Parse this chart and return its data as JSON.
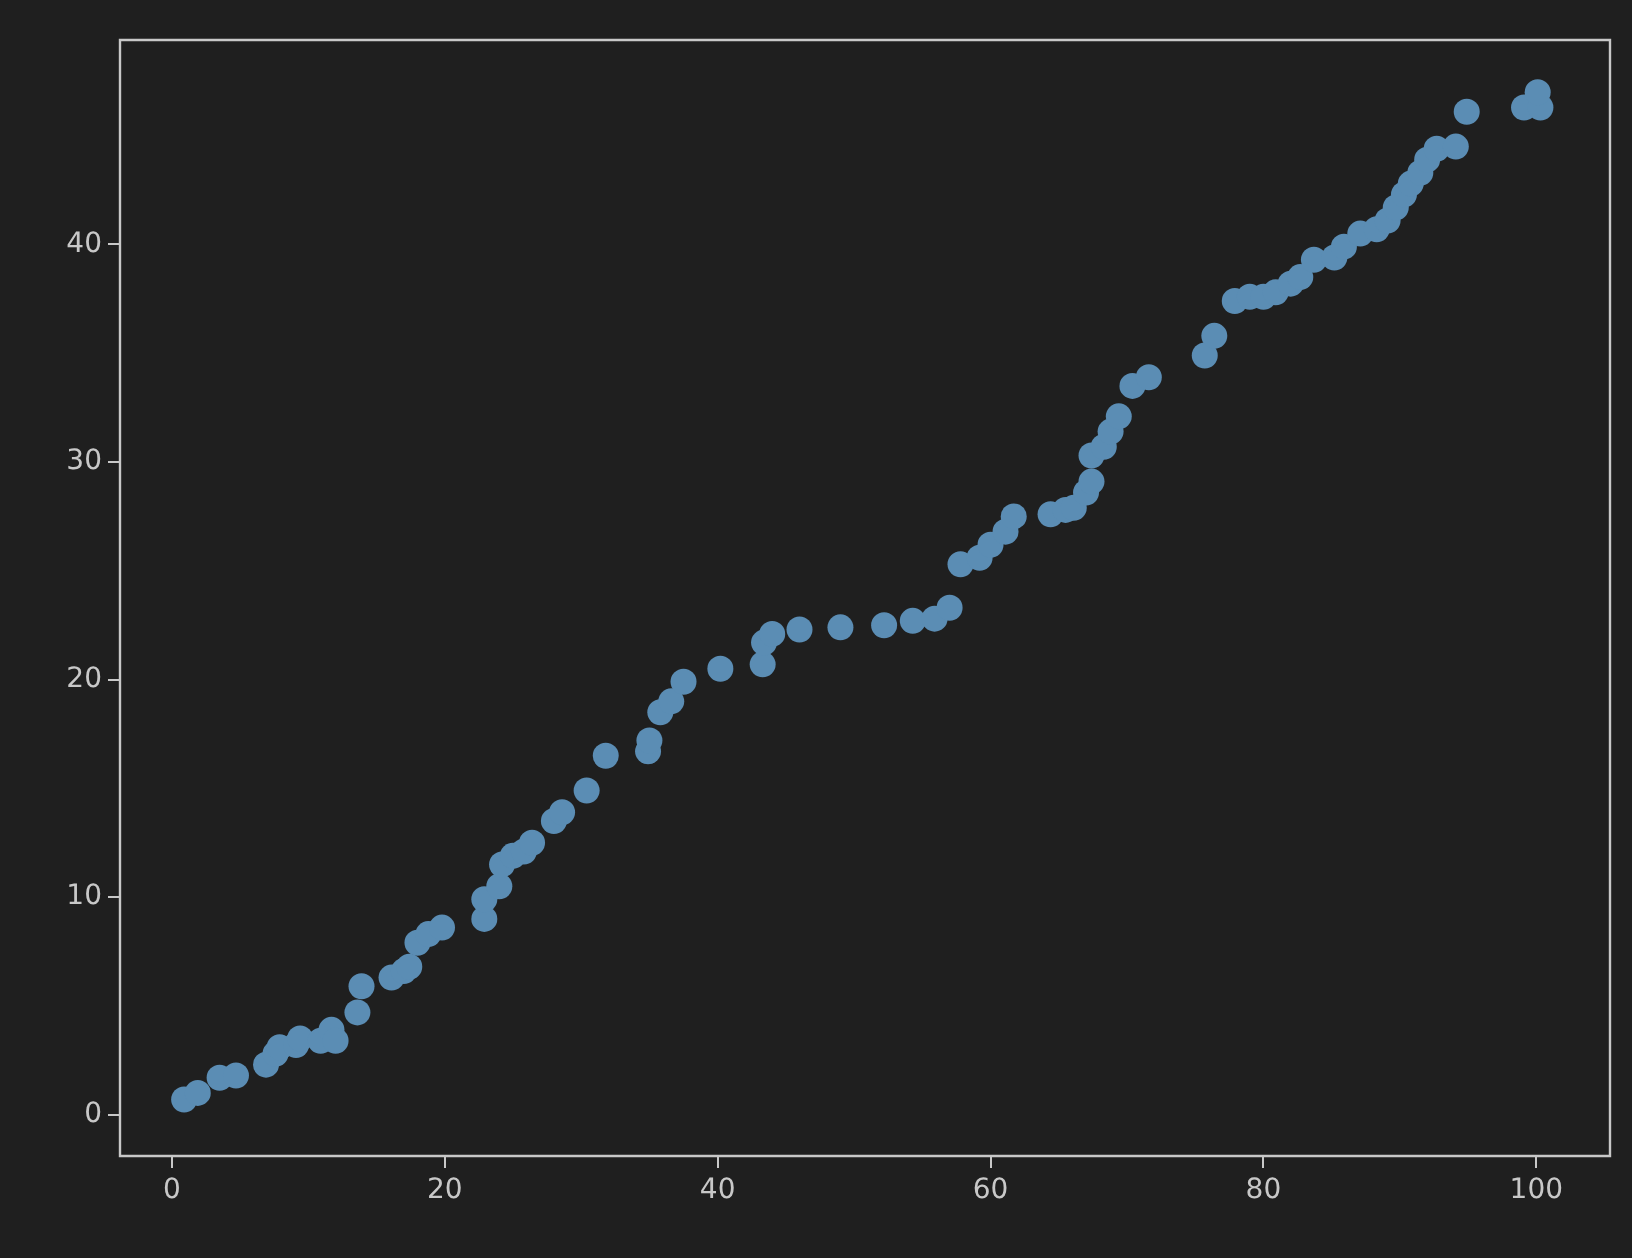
{
  "chart_data": {
    "type": "scatter",
    "marker": "circle",
    "grid": false,
    "legend": false,
    "xlim": [
      -3.8,
      105.4
    ],
    "ylim": [
      -1.9,
      49.4
    ],
    "xticks": [
      0,
      20,
      40,
      60,
      80,
      100
    ],
    "yticks": [
      0,
      10,
      20,
      30,
      40
    ],
    "series": [
      {
        "color": "#5b8db4",
        "x": [
          0.9,
          1.9,
          3.5,
          4.7,
          6.9,
          7.6,
          7.9,
          9.1,
          9.4,
          10.9,
          11.7,
          12,
          13.6,
          13.9,
          16.1,
          17,
          17.4,
          18,
          18.8,
          19.8,
          22.9,
          22.9,
          24,
          24.2,
          25,
          25.8,
          26.4,
          28,
          28.6,
          30.4,
          31.8,
          34.9,
          35,
          35.8,
          36.6,
          37.5,
          40.2,
          43.3,
          43.4,
          44,
          46,
          49,
          52.2,
          54.3,
          55.9,
          57,
          57.8,
          59.2,
          60,
          61.1,
          61.7,
          64.4,
          65.5,
          66.1,
          67,
          67.4,
          67.4,
          68.3,
          68.8,
          69.4,
          70.4,
          71.6,
          75.7,
          76.4,
          77.9,
          79,
          80,
          80.9,
          82,
          82.7,
          83.7,
          85.2,
          85.9,
          87.1,
          88.3,
          89.1,
          89.7,
          90.3,
          90.8,
          91.5,
          92,
          92.7,
          94.1,
          94.9,
          99.1,
          100.3,
          100.1
        ],
        "values": [
          0.7,
          1,
          1.7,
          1.8,
          2.3,
          2.8,
          3.1,
          3.2,
          3.5,
          3.4,
          3.9,
          3.4,
          4.7,
          5.9,
          6.3,
          6.6,
          6.8,
          7.9,
          8.3,
          8.6,
          9,
          9.9,
          10.5,
          11.5,
          11.9,
          12.1,
          12.5,
          13.5,
          13.9,
          14.9,
          16.5,
          16.7,
          17.2,
          18.5,
          19,
          19.9,
          20.5,
          20.7,
          21.7,
          22.1,
          22.3,
          22.4,
          22.5,
          22.7,
          22.8,
          23.3,
          25.3,
          25.6,
          26.2,
          26.8,
          27.5,
          27.6,
          27.8,
          27.9,
          28.6,
          29.1,
          30.3,
          30.7,
          31.4,
          32.1,
          33.5,
          33.9,
          34.9,
          35.8,
          37.4,
          37.6,
          37.6,
          37.8,
          38.2,
          38.5,
          39.3,
          39.4,
          39.9,
          40.5,
          40.7,
          41.1,
          41.7,
          42.3,
          42.8,
          43.3,
          43.9,
          44.4,
          44.5,
          46.1,
          46.3,
          46.3,
          47
        ]
      }
    ]
  }
}
